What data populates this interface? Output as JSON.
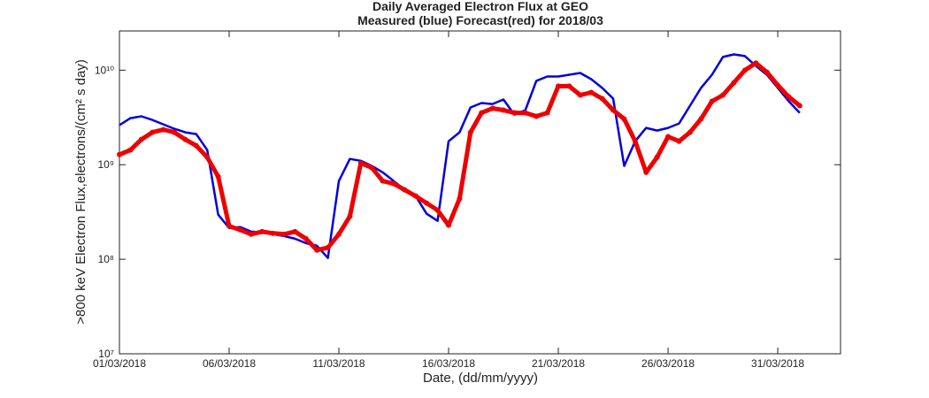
{
  "chart_data": {
    "type": "line",
    "title": "Daily Averaged Electron Flux at GEO",
    "subtitle": "Measured (blue) Forecast(red) for 2018/03",
    "x_label": "Date, (dd/mm/yyyy)",
    "y_label": ">800 keV Electron Flux,electrons/(cm² s day)",
    "log_y": true,
    "x": [
      0,
      0.5,
      1,
      1.5,
      2,
      2.5,
      3,
      3.5,
      4,
      4.5,
      5,
      5.5,
      6,
      6.5,
      7,
      7.5,
      8,
      8.5,
      9,
      9.5,
      10,
      10.5,
      11,
      11.5,
      12,
      12.5,
      13,
      13.5,
      14,
      14.5,
      15,
      15.5,
      16,
      16.5,
      17,
      17.5,
      18,
      18.5,
      19,
      19.5,
      20,
      20.5,
      21,
      21.5,
      22,
      22.5,
      23,
      23.5,
      24,
      24.5,
      25,
      25.5,
      26,
      26.5,
      27,
      27.5,
      28,
      28.5,
      29,
      29.5,
      30,
      30.5,
      31
    ],
    "series": [
      {
        "name": "Measured",
        "color": "#0000dd",
        "style": "line",
        "values": [
          2620000000.0,
          3110000000.0,
          3250000000.0,
          2980000000.0,
          2670000000.0,
          2400000000.0,
          2200000000.0,
          2110000000.0,
          1430000000.0,
          296000000.0,
          214000000.0,
          219000000.0,
          196000000.0,
          192000000.0,
          184000000.0,
          176000000.0,
          165000000.0,
          148000000.0,
          139000000.0,
          103000000.0,
          672000000.0,
          1150000000.0,
          1100000000.0,
          970000000.0,
          830000000.0,
          672000000.0,
          542000000.0,
          466000000.0,
          303000000.0,
          255000000.0,
          1770000000.0,
          2200000000.0,
          4030000000.0,
          4490000000.0,
          4390000000.0,
          4900000000.0,
          3390000000.0,
          3780000000.0,
          7710000000.0,
          8570000000.0,
          8570000000.0,
          8950000000.0,
          9350000000.0,
          8040000000.0,
          6490000000.0,
          5000000000.0,
          970000000.0,
          1770000000.0,
          2450000000.0,
          2300000000.0,
          2450000000.0,
          2730000000.0,
          4210000000.0,
          6490000000.0,
          8950000000.0,
          13800000000.0,
          14700000000.0,
          14100000000.0,
          11100000000.0,
          8950000000.0,
          6490000000.0,
          4690000000.0,
          3540000000.0
        ]
      },
      {
        "name": "Forecast",
        "color": "#ee0000",
        "style": "dots",
        "values": [
          1280000000.0,
          1430000000.0,
          1850000000.0,
          2200000000.0,
          2350000000.0,
          2200000000.0,
          1850000000.0,
          1590000000.0,
          1200000000.0,
          749000000.0,
          224000000.0,
          205000000.0,
          184000000.0,
          196000000.0,
          188000000.0,
          184000000.0,
          196000000.0,
          165000000.0,
          125000000.0,
          133000000.0,
          184000000.0,
          284000000.0,
          1040000000.0,
          930000000.0,
          672000000.0,
          630000000.0,
          542000000.0,
          466000000.0,
          392000000.0,
          330000000.0,
          229000000.0,
          437000000.0,
          2200000000.0,
          3540000000.0,
          3950000000.0,
          3780000000.0,
          3540000000.0,
          3540000000.0,
          3250000000.0,
          3540000000.0,
          6780000000.0,
          6780000000.0,
          5450000000.0,
          5820000000.0,
          5000000000.0,
          3780000000.0,
          3050000000.0,
          1770000000.0,
          830000000.0,
          1200000000.0,
          1980000000.0,
          1770000000.0,
          2200000000.0,
          3050000000.0,
          4690000000.0,
          5450000000.0,
          7380000000.0,
          9980000000.0,
          11900000000.0,
          9550000000.0,
          6920000000.0,
          5220000000.0,
          4210000000.0
        ]
      }
    ],
    "xlim": [
      0,
      32.86
    ],
    "xticks": [
      {
        "value": 0,
        "label": "01/03/2018"
      },
      {
        "value": 5,
        "label": "06/03/2018"
      },
      {
        "value": 10,
        "label": "11/03/2018"
      },
      {
        "value": 15,
        "label": "16/03/2018"
      },
      {
        "value": 20,
        "label": "21/03/2018"
      },
      {
        "value": 25,
        "label": "26/03/2018"
      },
      {
        "value": 30,
        "label": "31/03/2018"
      }
    ],
    "ylim": [
      10000000,
      26000000000
    ],
    "yticks": [
      {
        "value": 10000000,
        "label": "10⁷"
      },
      {
        "value": 100000000,
        "label": "10⁸"
      },
      {
        "value": 1000000000,
        "label": "10⁹"
      },
      {
        "value": 10000000000,
        "label": "10¹⁰"
      }
    ]
  }
}
